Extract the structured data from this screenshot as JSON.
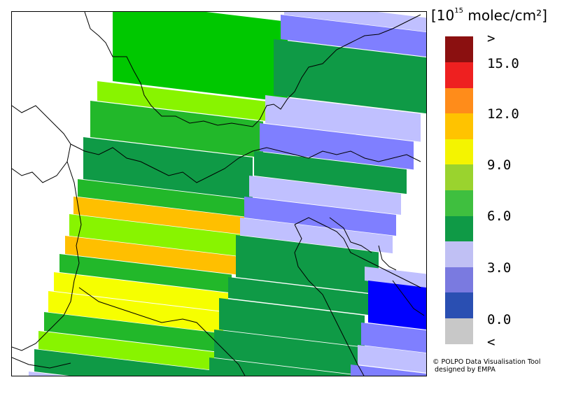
{
  "unit": {
    "prefix": "[10",
    "exp": "15",
    "suffix": " molec/cm²]"
  },
  "legend": {
    "colors": [
      "#c8c8c8",
      "#2a4fb2",
      "#7a7ae0",
      "#c0c0f4",
      "#0f9a46",
      "#3fbf3f",
      "#9ad32e",
      "#f4f400",
      "#ffc300",
      "#ff8c1a",
      "#ee2020",
      "#8b1010"
    ],
    "ticks": [
      ">",
      "15.0",
      "12.0",
      "9.0",
      "6.0",
      "3.0",
      "0.0",
      "<"
    ]
  },
  "map_colors": {
    "dark_green": "#0f9a46",
    "mid_green": "#22b82a",
    "light_green": "#00c800",
    "lime": "#88f400",
    "yellow": "#f6ff00",
    "orange": "#ffbf00",
    "light_blue": "#c0c0ff",
    "mid_blue": "#7f7fff",
    "blue": "#0000ff"
  },
  "credit": {
    "line1": "© POLPO Data Visualisation Tool",
    "line2": " designed by EMPA"
  }
}
